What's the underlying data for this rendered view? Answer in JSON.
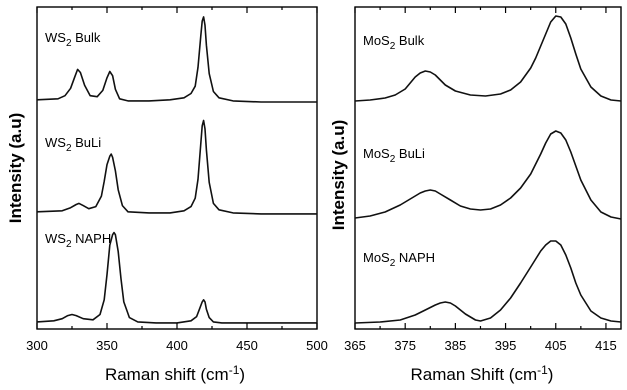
{
  "chart_data": [
    {
      "type": "line",
      "xlabel": "Raman shift (cm",
      "xlabel_sup": "-1",
      "xlabel_tail": ")",
      "ylabel": "Intensity (a.u)",
      "xlim": [
        300,
        500
      ],
      "xticks": [
        300,
        350,
        400,
        450,
        500
      ],
      "xtick_labels": [
        "300",
        "350",
        "400",
        "450",
        "500"
      ],
      "yticks": false,
      "series": [
        {
          "name": "Bulk",
          "label_main": "WS",
          "label_sub": "2",
          "label_tail": " Bulk",
          "x": [
            300,
            315,
            320,
            324,
            327,
            329,
            331,
            334,
            338,
            343,
            347,
            350,
            352,
            354,
            356,
            359,
            365,
            380,
            395,
            405,
            410,
            413,
            415,
            417,
            418,
            419,
            420,
            421,
            423,
            426,
            430,
            440,
            460,
            480,
            500
          ],
          "y": [
            0.03,
            0.04,
            0.07,
            0.14,
            0.25,
            0.32,
            0.29,
            0.17,
            0.07,
            0.06,
            0.12,
            0.24,
            0.3,
            0.26,
            0.13,
            0.04,
            0.02,
            0.02,
            0.03,
            0.05,
            0.09,
            0.16,
            0.34,
            0.64,
            0.78,
            0.82,
            0.74,
            0.55,
            0.28,
            0.11,
            0.05,
            0.02,
            0.01,
            0.01,
            0.01
          ]
        },
        {
          "name": "BuLi",
          "label_main": "WS",
          "label_sub": "2",
          "label_tail": " BuLi",
          "x": [
            300,
            318,
            324,
            328,
            330,
            333,
            337,
            342,
            346,
            348,
            350,
            352,
            353,
            354,
            356,
            358,
            361,
            365,
            380,
            395,
            405,
            410,
            413,
            415,
            417,
            418,
            419,
            420,
            421,
            423,
            426,
            430,
            440,
            460,
            500
          ],
          "y": [
            0.03,
            0.04,
            0.07,
            0.1,
            0.11,
            0.09,
            0.06,
            0.08,
            0.18,
            0.32,
            0.48,
            0.56,
            0.58,
            0.55,
            0.42,
            0.24,
            0.09,
            0.03,
            0.02,
            0.02,
            0.04,
            0.08,
            0.16,
            0.34,
            0.68,
            0.85,
            0.9,
            0.82,
            0.62,
            0.31,
            0.11,
            0.05,
            0.02,
            0.01,
            0.01
          ]
        },
        {
          "name": "NAPH",
          "label_main": "WS",
          "label_sub": "2",
          "label_tail": " NAPH",
          "x": [
            300,
            312,
            318,
            322,
            325,
            328,
            333,
            340,
            345,
            348,
            350,
            352,
            354,
            355,
            356,
            358,
            360,
            362,
            366,
            372,
            385,
            400,
            410,
            414,
            416,
            418,
            419,
            420,
            421,
            423,
            426,
            432,
            450,
            480,
            500
          ],
          "y": [
            0.03,
            0.04,
            0.06,
            0.09,
            0.1,
            0.09,
            0.06,
            0.05,
            0.1,
            0.24,
            0.48,
            0.76,
            0.86,
            0.88,
            0.86,
            0.7,
            0.44,
            0.22,
            0.07,
            0.03,
            0.02,
            0.02,
            0.04,
            0.08,
            0.15,
            0.22,
            0.24,
            0.22,
            0.15,
            0.07,
            0.03,
            0.02,
            0.02,
            0.02,
            0.02
          ]
        }
      ]
    },
    {
      "type": "line",
      "xlabel": "Raman Shift (cm",
      "xlabel_sup": "-1",
      "xlabel_tail": ")",
      "ylabel": "Intensity (a.u)",
      "xlim": [
        365,
        418
      ],
      "xticks": [
        365,
        375,
        385,
        395,
        405,
        415
      ],
      "xtick_labels": [
        "365",
        "375",
        "385",
        "395",
        "405",
        "415"
      ],
      "yticks": false,
      "series": [
        {
          "name": "Bulk",
          "label_main": "MoS",
          "label_sub": "2",
          "label_tail": " Bulk",
          "x": [
            365,
            368,
            371,
            373,
            375,
            376,
            377,
            378,
            379,
            380,
            381,
            382,
            383,
            385,
            388,
            391,
            394,
            396,
            398,
            400,
            401,
            402,
            403,
            404,
            405,
            406,
            407,
            408,
            409,
            410,
            412,
            414,
            416,
            418
          ],
          "y": [
            0.03,
            0.04,
            0.06,
            0.09,
            0.15,
            0.21,
            0.27,
            0.31,
            0.33,
            0.32,
            0.29,
            0.24,
            0.19,
            0.13,
            0.09,
            0.08,
            0.1,
            0.14,
            0.22,
            0.36,
            0.46,
            0.58,
            0.7,
            0.82,
            0.88,
            0.87,
            0.8,
            0.66,
            0.5,
            0.35,
            0.17,
            0.08,
            0.04,
            0.03
          ]
        },
        {
          "name": "BuLi",
          "label_main": "MoS",
          "label_sub": "2",
          "label_tail": " BuLi",
          "x": [
            365,
            368,
            371,
            374,
            376,
            378,
            379,
            380,
            381,
            382,
            384,
            386,
            388,
            390,
            392,
            394,
            396,
            398,
            400,
            401,
            402,
            403,
            404,
            405,
            406,
            407,
            408,
            409,
            410,
            412,
            414,
            416,
            418
          ],
          "y": [
            0.04,
            0.06,
            0.1,
            0.17,
            0.23,
            0.29,
            0.31,
            0.32,
            0.31,
            0.28,
            0.22,
            0.16,
            0.13,
            0.12,
            0.13,
            0.17,
            0.24,
            0.34,
            0.48,
            0.58,
            0.68,
            0.79,
            0.88,
            0.91,
            0.89,
            0.82,
            0.7,
            0.56,
            0.42,
            0.22,
            0.1,
            0.05,
            0.03
          ]
        },
        {
          "name": "NAPH",
          "label_main": "MoS",
          "label_sub": "2",
          "label_tail": " NAPH",
          "x": [
            365,
            370,
            374,
            377,
            379,
            381,
            382,
            383,
            384,
            385,
            387,
            389,
            390,
            392,
            394,
            396,
            398,
            400,
            401,
            402,
            403,
            404,
            405,
            406,
            407,
            408,
            409,
            410,
            412,
            414,
            416,
            418
          ],
          "y": [
            0.02,
            0.03,
            0.05,
            0.1,
            0.15,
            0.2,
            0.22,
            0.23,
            0.22,
            0.19,
            0.11,
            0.05,
            0.04,
            0.07,
            0.15,
            0.27,
            0.42,
            0.58,
            0.66,
            0.74,
            0.8,
            0.84,
            0.84,
            0.8,
            0.7,
            0.57,
            0.42,
            0.3,
            0.14,
            0.07,
            0.04,
            0.03
          ]
        }
      ]
    }
  ]
}
